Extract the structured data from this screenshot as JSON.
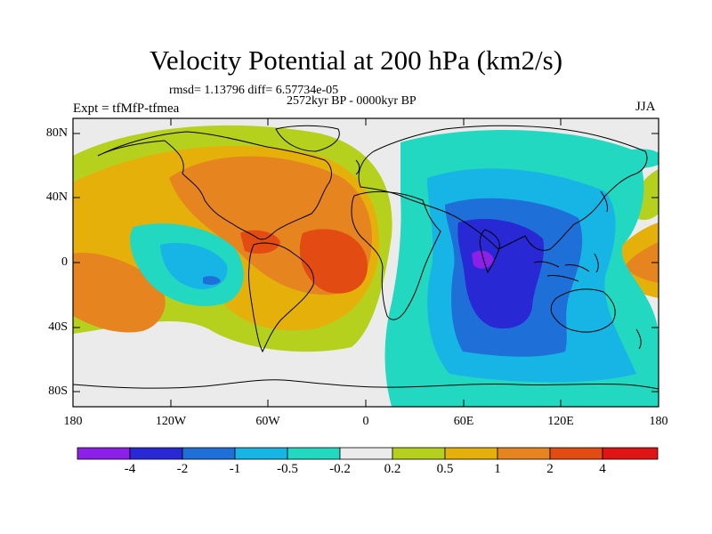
{
  "title": "Velocity Potential at 200 hPa (km2/s)",
  "stats_text": "rmsd= 1.13796 diff= 6.57734e-05",
  "period_text": "2572kyr BP - 0000kyr BP",
  "experiment_text": "Expt = tfMfP-tfmea",
  "season": "JJA",
  "lat_labels": [
    "80N",
    "40N",
    "0",
    "40S",
    "80S"
  ],
  "lon_labels": [
    "180",
    "120W",
    "60W",
    "0",
    "60E",
    "120E",
    "180"
  ],
  "colorbar": {
    "colors": [
      "#8c1fe8",
      "#2828d4",
      "#1f6fd8",
      "#17b4e6",
      "#22d8c0",
      "#ebebeb",
      "#b5d11e",
      "#e6b00a",
      "#e68420",
      "#e24b12",
      "#e01414"
    ],
    "labels": [
      "-4",
      "-2",
      "-1",
      "-0.5",
      "-0.2",
      "0.2",
      "0.5",
      "1",
      "2",
      "4"
    ]
  }
}
